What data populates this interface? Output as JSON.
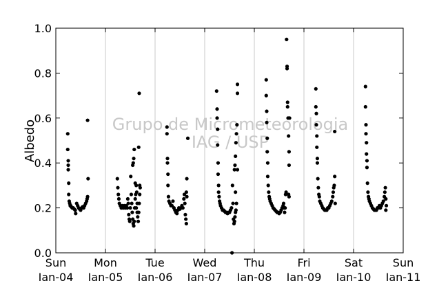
{
  "chart_data": {
    "type": "scatter",
    "ylabel": "Albedo",
    "xlabel": "",
    "ylim": [
      0.0,
      1.0
    ],
    "xlim": [
      0,
      7
    ],
    "yticks": [
      "0.0",
      "0.2",
      "0.4",
      "0.6",
      "0.8",
      "1.0"
    ],
    "xticks": [
      {
        "day": "Sun",
        "date": "Jan-04"
      },
      {
        "day": "Mon",
        "date": "Jan-05"
      },
      {
        "day": "Tue",
        "date": "Jan-06"
      },
      {
        "day": "Wed",
        "date": "Jan-07"
      },
      {
        "day": "Thu",
        "date": "Jan-08"
      },
      {
        "day": "Fri",
        "date": "Jan-09"
      },
      {
        "day": "Sat",
        "date": "Jan-10"
      },
      {
        "day": "Sun",
        "date": "Jan-11"
      }
    ],
    "watermark": [
      "Grupo de Micrometeorologia",
      "IAG / USP"
    ],
    "grid": "vertical",
    "marker_color": "#000000",
    "series": [
      {
        "values": [
          [
            0.24,
            0.53
          ],
          [
            0.24,
            0.46
          ],
          [
            0.25,
            0.41
          ],
          [
            0.25,
            0.39
          ],
          [
            0.25,
            0.37
          ],
          [
            0.26,
            0.31
          ],
          [
            0.26,
            0.26
          ],
          [
            0.27,
            0.23
          ],
          [
            0.28,
            0.22
          ],
          [
            0.29,
            0.21
          ],
          [
            0.3,
            0.21
          ],
          [
            0.31,
            0.205
          ],
          [
            0.33,
            0.2
          ],
          [
            0.35,
            0.2
          ],
          [
            0.37,
            0.195
          ],
          [
            0.39,
            0.19
          ],
          [
            0.4,
            0.175
          ],
          [
            0.42,
            0.22
          ],
          [
            0.44,
            0.21
          ],
          [
            0.46,
            0.2
          ],
          [
            0.48,
            0.195
          ],
          [
            0.5,
            0.19
          ],
          [
            0.52,
            0.2
          ],
          [
            0.54,
            0.205
          ],
          [
            0.56,
            0.2
          ],
          [
            0.58,
            0.21
          ],
          [
            0.6,
            0.22
          ],
          [
            0.62,
            0.23
          ],
          [
            0.63,
            0.24
          ],
          [
            0.64,
            0.25
          ],
          [
            0.64,
            0.59
          ],
          [
            0.65,
            0.33
          ],
          [
            1.24,
            0.33
          ],
          [
            1.25,
            0.29
          ],
          [
            1.26,
            0.26
          ],
          [
            1.27,
            0.24
          ],
          [
            1.28,
            0.22
          ],
          [
            1.3,
            0.21
          ],
          [
            1.32,
            0.2
          ],
          [
            1.34,
            0.21
          ],
          [
            1.36,
            0.2
          ],
          [
            1.38,
            0.21
          ],
          [
            1.4,
            0.2
          ],
          [
            1.42,
            0.21
          ],
          [
            1.44,
            0.2
          ],
          [
            1.45,
            0.24
          ],
          [
            1.46,
            0.22
          ],
          [
            1.47,
            0.17
          ],
          [
            1.48,
            0.15
          ],
          [
            1.49,
            0.14
          ],
          [
            1.5,
            0.2
          ],
          [
            1.51,
            0.34
          ],
          [
            1.52,
            0.26
          ],
          [
            1.53,
            0.22
          ],
          [
            1.54,
            0.18
          ],
          [
            1.55,
            0.15
          ],
          [
            1.56,
            0.13
          ],
          [
            1.57,
            0.12
          ],
          [
            1.58,
            0.14
          ],
          [
            1.59,
            0.2
          ],
          [
            1.6,
            0.24
          ],
          [
            1.61,
            0.26
          ],
          [
            1.62,
            0.3
          ],
          [
            1.63,
            0.27
          ],
          [
            1.64,
            0.22
          ],
          [
            1.65,
            0.16
          ],
          [
            1.66,
            0.14
          ],
          [
            1.67,
            0.18
          ],
          [
            1.68,
            0.22
          ],
          [
            1.69,
            0.26
          ],
          [
            1.7,
            0.29
          ],
          [
            1.55,
            0.39
          ],
          [
            1.56,
            0.4
          ],
          [
            1.57,
            0.42
          ],
          [
            1.58,
            0.46
          ],
          [
            1.6,
            0.31
          ],
          [
            1.62,
            0.2
          ],
          [
            1.64,
            0.18
          ],
          [
            1.67,
            0.47
          ],
          [
            1.68,
            0.71
          ],
          [
            1.69,
            0.3
          ],
          [
            2.24,
            0.56
          ],
          [
            2.24,
            0.53
          ],
          [
            2.25,
            0.42
          ],
          [
            2.25,
            0.4
          ],
          [
            2.26,
            0.35
          ],
          [
            2.26,
            0.3
          ],
          [
            2.27,
            0.25
          ],
          [
            2.28,
            0.23
          ],
          [
            2.3,
            0.22
          ],
          [
            2.32,
            0.21
          ],
          [
            2.34,
            0.21
          ],
          [
            2.36,
            0.23
          ],
          [
            2.38,
            0.2
          ],
          [
            2.4,
            0.19
          ],
          [
            2.42,
            0.18
          ],
          [
            2.44,
            0.175
          ],
          [
            2.46,
            0.19
          ],
          [
            2.48,
            0.2
          ],
          [
            2.5,
            0.195
          ],
          [
            2.52,
            0.2
          ],
          [
            2.54,
            0.21
          ],
          [
            2.56,
            0.2
          ],
          [
            2.58,
            0.24
          ],
          [
            2.59,
            0.26
          ],
          [
            2.6,
            0.22
          ],
          [
            2.61,
            0.17
          ],
          [
            2.62,
            0.15
          ],
          [
            2.63,
            0.13
          ],
          [
            2.63,
            0.27
          ],
          [
            2.64,
            0.25
          ],
          [
            2.64,
            0.33
          ],
          [
            2.66,
            0.51
          ],
          [
            3.24,
            0.72
          ],
          [
            3.25,
            0.64
          ],
          [
            3.25,
            0.6
          ],
          [
            3.26,
            0.55
          ],
          [
            3.26,
            0.48
          ],
          [
            3.27,
            0.4
          ],
          [
            3.27,
            0.35
          ],
          [
            3.28,
            0.3
          ],
          [
            3.28,
            0.27
          ],
          [
            3.29,
            0.25
          ],
          [
            3.3,
            0.23
          ],
          [
            3.31,
            0.22
          ],
          [
            3.32,
            0.21
          ],
          [
            3.34,
            0.2
          ],
          [
            3.36,
            0.19
          ],
          [
            3.38,
            0.19
          ],
          [
            3.4,
            0.185
          ],
          [
            3.42,
            0.18
          ],
          [
            3.44,
            0.18
          ],
          [
            3.46,
            0.175
          ],
          [
            3.48,
            0.18
          ],
          [
            3.5,
            0.18
          ],
          [
            3.52,
            0.19
          ],
          [
            3.54,
            0.2
          ],
          [
            3.56,
            0.3
          ],
          [
            3.57,
            0.22
          ],
          [
            3.58,
            0.15
          ],
          [
            3.59,
            0.13
          ],
          [
            3.6,
            0.14
          ],
          [
            3.61,
            0.16
          ],
          [
            3.62,
            0.18
          ],
          [
            3.63,
            0.19
          ],
          [
            3.6,
            0.37
          ],
          [
            3.61,
            0.39
          ],
          [
            3.62,
            0.43
          ],
          [
            3.63,
            0.49
          ],
          [
            3.64,
            0.53
          ],
          [
            3.65,
            0.57
          ],
          [
            3.66,
            0.71
          ],
          [
            3.66,
            0.75
          ],
          [
            3.66,
            0.37
          ],
          [
            3.62,
            0.27
          ],
          [
            3.64,
            0.22
          ],
          [
            3.55,
            0.0
          ],
          [
            4.24,
            0.77
          ],
          [
            4.24,
            0.7
          ],
          [
            4.25,
            0.63
          ],
          [
            4.25,
            0.58
          ],
          [
            4.26,
            0.51
          ],
          [
            4.26,
            0.45
          ],
          [
            4.27,
            0.4
          ],
          [
            4.27,
            0.34
          ],
          [
            4.28,
            0.3
          ],
          [
            4.29,
            0.27
          ],
          [
            4.3,
            0.25
          ],
          [
            4.31,
            0.24
          ],
          [
            4.32,
            0.23
          ],
          [
            4.34,
            0.22
          ],
          [
            4.36,
            0.21
          ],
          [
            4.38,
            0.2
          ],
          [
            4.4,
            0.195
          ],
          [
            4.42,
            0.19
          ],
          [
            4.44,
            0.185
          ],
          [
            4.46,
            0.18
          ],
          [
            4.48,
            0.18
          ],
          [
            4.5,
            0.175
          ],
          [
            4.52,
            0.18
          ],
          [
            4.54,
            0.19
          ],
          [
            4.56,
            0.2
          ],
          [
            4.58,
            0.21
          ],
          [
            4.59,
            0.22
          ],
          [
            4.6,
            0.2
          ],
          [
            4.61,
            0.18
          ],
          [
            4.62,
            0.2
          ],
          [
            4.63,
            0.26
          ],
          [
            4.64,
            0.27
          ],
          [
            4.65,
            0.95
          ],
          [
            4.66,
            0.83
          ],
          [
            4.66,
            0.82
          ],
          [
            4.67,
            0.67
          ],
          [
            4.67,
            0.65
          ],
          [
            4.68,
            0.6
          ],
          [
            4.69,
            0.52
          ],
          [
            4.7,
            0.45
          ],
          [
            4.7,
            0.39
          ],
          [
            4.69,
            0.26
          ],
          [
            4.7,
            0.25
          ],
          [
            4.71,
            0.6
          ],
          [
            5.24,
            0.73
          ],
          [
            5.24,
            0.65
          ],
          [
            5.25,
            0.62
          ],
          [
            5.25,
            0.57
          ],
          [
            5.26,
            0.52
          ],
          [
            5.26,
            0.47
          ],
          [
            5.27,
            0.42
          ],
          [
            5.27,
            0.4
          ],
          [
            5.28,
            0.33
          ],
          [
            5.29,
            0.29
          ],
          [
            5.3,
            0.26
          ],
          [
            5.31,
            0.25
          ],
          [
            5.32,
            0.23
          ],
          [
            5.34,
            0.22
          ],
          [
            5.36,
            0.21
          ],
          [
            5.38,
            0.2
          ],
          [
            5.4,
            0.195
          ],
          [
            5.42,
            0.19
          ],
          [
            5.44,
            0.19
          ],
          [
            5.46,
            0.19
          ],
          [
            5.48,
            0.2
          ],
          [
            5.5,
            0.2
          ],
          [
            5.52,
            0.21
          ],
          [
            5.54,
            0.22
          ],
          [
            5.56,
            0.23
          ],
          [
            5.58,
            0.25
          ],
          [
            5.59,
            0.27
          ],
          [
            5.6,
            0.29
          ],
          [
            5.61,
            0.3
          ],
          [
            5.62,
            0.34
          ],
          [
            5.62,
            0.54
          ],
          [
            5.63,
            0.22
          ],
          [
            6.24,
            0.74
          ],
          [
            6.24,
            0.65
          ],
          [
            6.25,
            0.57
          ],
          [
            6.25,
            0.53
          ],
          [
            6.26,
            0.49
          ],
          [
            6.26,
            0.44
          ],
          [
            6.27,
            0.41
          ],
          [
            6.27,
            0.38
          ],
          [
            6.28,
            0.31
          ],
          [
            6.29,
            0.27
          ],
          [
            6.3,
            0.25
          ],
          [
            6.31,
            0.24
          ],
          [
            6.32,
            0.23
          ],
          [
            6.34,
            0.22
          ],
          [
            6.36,
            0.21
          ],
          [
            6.38,
            0.2
          ],
          [
            6.4,
            0.195
          ],
          [
            6.42,
            0.19
          ],
          [
            6.44,
            0.19
          ],
          [
            6.46,
            0.19
          ],
          [
            6.48,
            0.2
          ],
          [
            6.5,
            0.2
          ],
          [
            6.52,
            0.21
          ],
          [
            6.54,
            0.2
          ],
          [
            6.56,
            0.21
          ],
          [
            6.58,
            0.22
          ],
          [
            6.6,
            0.23
          ],
          [
            6.62,
            0.25
          ],
          [
            6.63,
            0.27
          ],
          [
            6.64,
            0.29
          ],
          [
            6.65,
            0.24
          ],
          [
            6.65,
            0.19
          ],
          [
            6.66,
            0.21
          ]
        ]
      }
    ]
  }
}
